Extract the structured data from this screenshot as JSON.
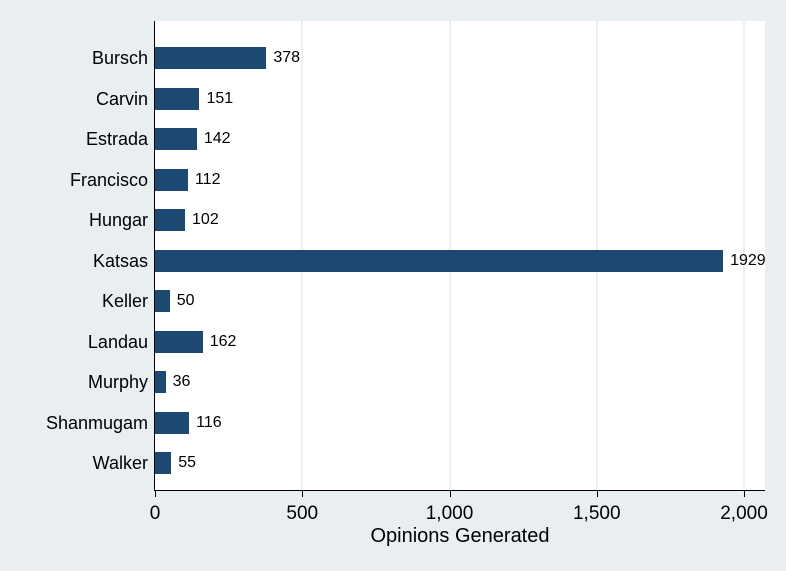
{
  "chart_data": {
    "type": "bar",
    "orientation": "horizontal",
    "title": "",
    "xlabel": "Opinions Generated",
    "ylabel": "",
    "categories": [
      "Bursch",
      "Carvin",
      "Estrada",
      "Francisco",
      "Hungar",
      "Katsas",
      "Keller",
      "Landau",
      "Murphy",
      "Shanmugam",
      "Walker"
    ],
    "values": [
      378,
      151,
      142,
      112,
      102,
      1929,
      50,
      162,
      36,
      116,
      55
    ],
    "bar_value_labels": [
      "378",
      "151",
      "142",
      "112",
      "102",
      "1929",
      "50",
      "162",
      "36",
      "116",
      "55"
    ],
    "xlim": [
      0,
      2070
    ],
    "xticks": [
      {
        "value": 0,
        "label": "0"
      },
      {
        "value": 500,
        "label": "500"
      },
      {
        "value": 1000,
        "label": "1,000"
      },
      {
        "value": 1500,
        "label": "1,500"
      },
      {
        "value": 2000,
        "label": "2,000"
      }
    ],
    "grid": true,
    "legend": "none",
    "colors": {
      "bar": "#1b4971",
      "plot_background": "#ffffff",
      "outer_background": "#e9eef1",
      "gridline": "#e9f1f5",
      "axis": "#000000",
      "text": "#000000"
    }
  }
}
